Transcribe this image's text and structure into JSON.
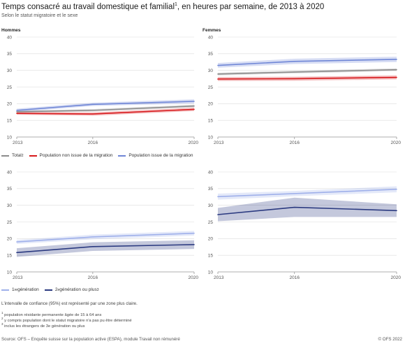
{
  "header": {
    "title_main": "Temps consacré au travail domestique et familial",
    "title_sup": "1",
    "title_rest": ", en heures par semaine, de 2013 à 2020",
    "subtitle": "Selon le statut migratoire et le sexe"
  },
  "colors": {
    "total": "#8c8c8c",
    "non_migration": "#d7191c",
    "migration": "#6f86d6",
    "first_generation": "#9fb0ea",
    "second_generation": "#2b3a80",
    "axis_text": "#555555",
    "grid": "#dcdcdc"
  },
  "legend_top": {
    "total": "Total",
    "total_sup": "2",
    "non_migration": "Population non issue de la migration",
    "migration": "Population issue de la migration"
  },
  "legend_bottom": {
    "first_gen_pre": "1",
    "first_gen_sup": "re",
    "first_gen_post": " génération",
    "second_gen_pre": "2",
    "second_gen_sup": "e",
    "second_gen_post": " génération ou plus",
    "second_gen_fn": "3"
  },
  "note": "L'intervalle de confiance (95%) est représenté par une zone plus claire.",
  "footnotes": [
    {
      "num": "1",
      "text": "population résidante permanente âgée de 15 à 64 ans"
    },
    {
      "num": "2",
      "text": "y compris population dont le statut migratoire n'a pas pu être déterminé"
    },
    {
      "num": "3",
      "text": "inclus les étrangers de 3e génération ou plus"
    }
  ],
  "footer": {
    "source": "Source: OFS – Enquête suisse sur la population active (ESPA), module Travail non rémunéré",
    "copyright": "© OFS 2022"
  },
  "chart_data": [
    {
      "type": "line",
      "title": "Hommes",
      "x": [
        2013,
        2016,
        2020
      ],
      "xticks": [
        "2013",
        "2016",
        "2020"
      ],
      "ylim": [
        10,
        40
      ],
      "yticks": [
        "10",
        "15",
        "20",
        "25",
        "30",
        "35",
        "40"
      ],
      "grid": true,
      "series": [
        {
          "key": "total",
          "name": "Total",
          "values": [
            17.6,
            18.0,
            19.3
          ],
          "lower": [
            17.3,
            17.6,
            18.9
          ],
          "upper": [
            17.9,
            18.4,
            19.7
          ]
        },
        {
          "key": "non_migration",
          "name": "Population non issue de la migration",
          "values": [
            17.1,
            16.9,
            18.3
          ],
          "lower": [
            16.7,
            16.4,
            17.8
          ],
          "upper": [
            17.5,
            17.4,
            18.8
          ]
        },
        {
          "key": "migration",
          "name": "Population issue de la migration",
          "values": [
            18.0,
            19.8,
            20.7
          ],
          "lower": [
            17.5,
            19.3,
            20.1
          ],
          "upper": [
            18.5,
            20.3,
            21.3
          ]
        }
      ]
    },
    {
      "type": "line",
      "title": "Femmes",
      "x": [
        2013,
        2016,
        2020
      ],
      "xticks": [
        "2013",
        "2016",
        "2020"
      ],
      "ylim": [
        10,
        40
      ],
      "yticks": [
        "10",
        "15",
        "20",
        "25",
        "30",
        "35",
        "40"
      ],
      "grid": true,
      "series": [
        {
          "key": "total",
          "name": "Total",
          "values": [
            28.9,
            29.5,
            30.2
          ],
          "lower": [
            28.5,
            29.1,
            29.8
          ],
          "upper": [
            29.3,
            29.9,
            30.6
          ]
        },
        {
          "key": "non_migration",
          "name": "Population non issue de la migration",
          "values": [
            27.4,
            27.5,
            27.9
          ],
          "lower": [
            26.8,
            26.9,
            27.3
          ],
          "upper": [
            28.0,
            28.1,
            28.5
          ]
        },
        {
          "key": "migration",
          "name": "Population issue de la migration",
          "values": [
            31.5,
            32.7,
            33.3
          ],
          "lower": [
            30.8,
            31.9,
            32.5
          ],
          "upper": [
            32.2,
            33.5,
            34.1
          ]
        }
      ]
    },
    {
      "type": "line",
      "title": "",
      "x": [
        2013,
        2016,
        2020
      ],
      "xticks": [
        "2013",
        "2016",
        "2020"
      ],
      "ylim": [
        10,
        40
      ],
      "yticks": [
        "10",
        "15",
        "20",
        "25",
        "30",
        "35",
        "40"
      ],
      "grid": true,
      "series": [
        {
          "key": "first_generation",
          "name": "1re génération",
          "values": [
            19.0,
            20.5,
            21.6
          ],
          "lower": [
            18.4,
            19.8,
            20.9
          ],
          "upper": [
            19.6,
            21.2,
            22.3
          ]
        },
        {
          "key": "second_generation",
          "name": "2e génération ou plus",
          "values": [
            15.8,
            17.6,
            18.2
          ],
          "lower": [
            14.5,
            16.3,
            16.9
          ],
          "upper": [
            17.1,
            18.9,
            19.5
          ]
        }
      ]
    },
    {
      "type": "line",
      "title": "",
      "x": [
        2013,
        2016,
        2020
      ],
      "xticks": [
        "2013",
        "2016",
        "2020"
      ],
      "ylim": [
        10,
        40
      ],
      "yticks": [
        "10",
        "15",
        "20",
        "25",
        "30",
        "35",
        "40"
      ],
      "grid": true,
      "series": [
        {
          "key": "first_generation",
          "name": "1re génération",
          "values": [
            32.6,
            33.5,
            34.8
          ],
          "lower": [
            31.7,
            32.7,
            33.9
          ],
          "upper": [
            33.5,
            34.3,
            35.7
          ]
        },
        {
          "key": "second_generation",
          "name": "2e génération ou plus",
          "values": [
            27.2,
            29.4,
            28.4
          ],
          "lower": [
            25.2,
            26.5,
            26.5
          ],
          "upper": [
            29.2,
            32.3,
            30.3
          ]
        }
      ]
    }
  ]
}
